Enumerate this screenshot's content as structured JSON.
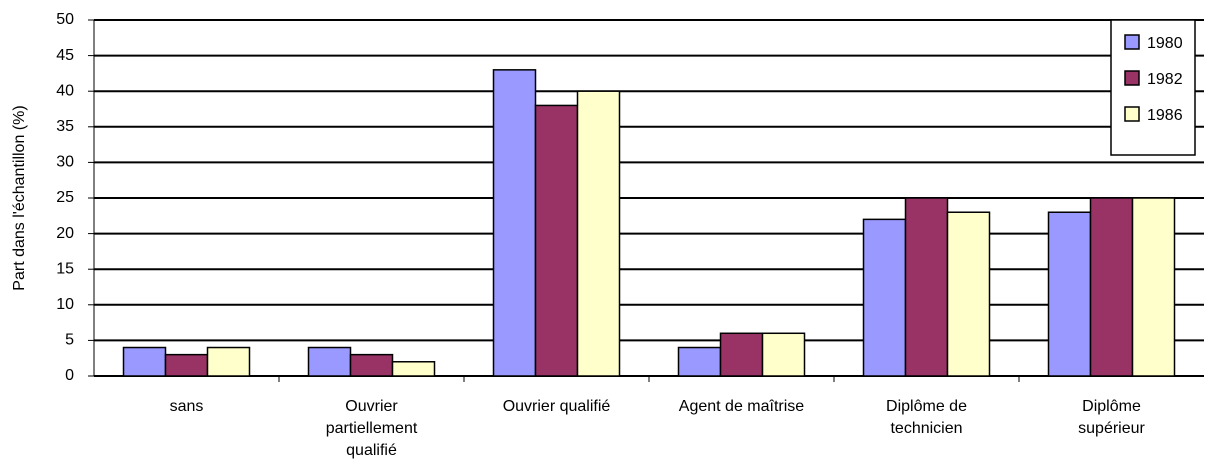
{
  "chart_data": {
    "type": "bar",
    "y_label": "Part dans l'échantillon (%)",
    "categories": [
      "sans",
      "Ouvrier\npartiellement\nqualifié",
      "Ouvrier qualifié",
      "Agent de maîtrise",
      "Diplôme de\ntechnicien",
      "Diplôme\nsupérieur"
    ],
    "series": [
      {
        "name": "1980",
        "color": "#9999ff",
        "values": [
          4,
          4,
          43,
          4,
          22,
          23
        ]
      },
      {
        "name": "1982",
        "color": "#993366",
        "values": [
          3,
          3,
          38,
          6,
          25,
          25
        ]
      },
      {
        "name": "1986",
        "color": "#ffffcc",
        "values": [
          4,
          2,
          40,
          6,
          23,
          25
        ]
      }
    ],
    "ylim": [
      0,
      50
    ],
    "yticks": [
      0,
      5,
      10,
      15,
      20,
      25,
      30,
      35,
      40,
      45,
      50
    ],
    "grid": true,
    "legend": "top-right"
  }
}
